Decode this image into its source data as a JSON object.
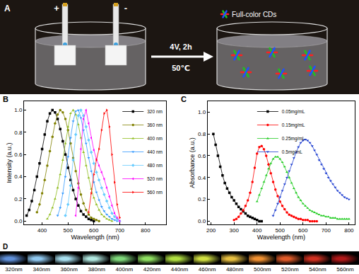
{
  "panels": {
    "A": {
      "label": "A",
      "anode": "+",
      "cathode": "-",
      "condition": "4V, 2h",
      "temperature": "50℃",
      "product": "Full-color CDs"
    },
    "D": {
      "label": "D",
      "images": [
        {
          "label": "320nm",
          "color": "#5f8fd8"
        },
        {
          "label": "340nm",
          "color": "#8fc8f0"
        },
        {
          "label": "360nm",
          "color": "#a8e0f0"
        },
        {
          "label": "380nm",
          "color": "#b0e8e0"
        },
        {
          "label": "400nm",
          "color": "#7ed87a"
        },
        {
          "label": "420nm",
          "color": "#8ee060"
        },
        {
          "label": "440nm",
          "color": "#b0e040"
        },
        {
          "label": "460nm",
          "color": "#d0e040"
        },
        {
          "label": "480nm",
          "color": "#e8c040"
        },
        {
          "label": "500nm",
          "color": "#f09030"
        },
        {
          "label": "520nm",
          "color": "#e05a28"
        },
        {
          "label": "540nm",
          "color": "#d03020"
        },
        {
          "label": "560nm",
          "color": "#b01818"
        }
      ]
    }
  },
  "chart_data": [
    {
      "label": "B",
      "type": "scatter",
      "xlabel": "Wavelength (nm)",
      "ylabel": "Intensity (a.u.)",
      "xlim": [
        330,
        880
      ],
      "xticks": [
        400,
        500,
        600,
        700,
        800
      ],
      "ylim": [
        -0.03,
        1.08
      ],
      "yticks": [
        {
          "value": 0,
          "label": "0.0"
        },
        {
          "value": 0.2,
          "label": "0.2"
        },
        {
          "value": 0.4,
          "label": "0.4"
        },
        {
          "value": 0.6,
          "label": "0.6"
        },
        {
          "value": 0.8,
          "label": "0.8"
        },
        {
          "value": 1,
          "label": "1.0"
        }
      ],
      "grid": false,
      "legend": "upper right",
      "series": [
        {
          "name": "320 nm",
          "color": "#000000",
          "marker": "square",
          "line_style": "solid",
          "x": [
            340,
            350,
            360,
            370,
            380,
            390,
            400,
            410,
            420,
            430,
            440,
            450,
            460,
            470,
            480,
            490,
            500,
            510,
            520,
            530,
            540,
            550,
            560,
            570,
            580,
            590,
            600
          ],
          "values": [
            0.05,
            0.1,
            0.18,
            0.28,
            0.4,
            0.52,
            0.65,
            0.78,
            0.9,
            0.97,
            1.0,
            0.98,
            0.92,
            0.83,
            0.72,
            0.6,
            0.48,
            0.37,
            0.28,
            0.2,
            0.14,
            0.09,
            0.06,
            0.04,
            0.02,
            0.01,
            0.0
          ]
        },
        {
          "name": "360 nm",
          "color": "#808000",
          "marker": "circle",
          "line_style": "solid",
          "x": [
            380,
            390,
            400,
            410,
            420,
            430,
            440,
            450,
            460,
            470,
            480,
            490,
            500,
            510,
            520,
            530,
            540,
            550,
            560,
            570,
            580,
            590,
            600,
            610,
            620
          ],
          "values": [
            0.08,
            0.15,
            0.25,
            0.37,
            0.5,
            0.63,
            0.76,
            0.88,
            0.96,
            1.0,
            0.98,
            0.92,
            0.82,
            0.7,
            0.57,
            0.45,
            0.34,
            0.24,
            0.16,
            0.1,
            0.06,
            0.03,
            0.02,
            0.01,
            0.0
          ]
        },
        {
          "name": "400 nm",
          "color": "#8fbc1e",
          "marker": "triangle-up",
          "line_style": "solid",
          "x": [
            420,
            430,
            440,
            450,
            460,
            470,
            480,
            490,
            500,
            510,
            520,
            530,
            540,
            550,
            560,
            570,
            580,
            590,
            600,
            610,
            620,
            630,
            640,
            650,
            660,
            670
          ],
          "values": [
            0.02,
            0.06,
            0.12,
            0.2,
            0.3,
            0.42,
            0.55,
            0.7,
            0.85,
            0.97,
            1.0,
            0.96,
            0.87,
            0.75,
            0.62,
            0.5,
            0.39,
            0.29,
            0.21,
            0.15,
            0.1,
            0.06,
            0.04,
            0.02,
            0.01,
            0.0
          ]
        },
        {
          "name": "440 nm",
          "color": "#3399ff",
          "marker": "triangle-down",
          "line_style": "solid",
          "x": [
            460,
            470,
            480,
            490,
            500,
            510,
            520,
            530,
            540,
            550,
            560,
            570,
            580,
            590,
            600,
            610,
            620,
            630,
            640,
            650,
            660,
            670,
            680,
            690
          ],
          "values": [
            0.05,
            0.12,
            0.25,
            0.4,
            0.58,
            0.75,
            0.9,
            0.99,
            1.0,
            0.93,
            0.82,
            0.7,
            0.57,
            0.45,
            0.35,
            0.26,
            0.19,
            0.13,
            0.09,
            0.06,
            0.04,
            0.02,
            0.01,
            0.0
          ]
        },
        {
          "name": "480 nm",
          "color": "#66ccff",
          "marker": "diamond",
          "line_style": "solid",
          "x": [
            490,
            500,
            510,
            520,
            530,
            540,
            550,
            560,
            570,
            580,
            590,
            600,
            610,
            620,
            630,
            640,
            650,
            660,
            670,
            680,
            690,
            700
          ],
          "values": [
            0.05,
            0.15,
            0.32,
            0.55,
            0.78,
            0.95,
            1.0,
            0.95,
            0.85,
            0.73,
            0.62,
            0.52,
            0.44,
            0.37,
            0.3,
            0.24,
            0.18,
            0.12,
            0.07,
            0.04,
            0.02,
            0.0
          ]
        },
        {
          "name": "520 nm",
          "color": "#ff00ff",
          "marker": "triangle-left",
          "line_style": "solid",
          "x": [
            530,
            540,
            550,
            560,
            570,
            580,
            590,
            600,
            610,
            620,
            630,
            640,
            650,
            660,
            670,
            680,
            690,
            700
          ],
          "values": [
            0.05,
            0.3,
            0.65,
            0.92,
            1.0,
            0.88,
            0.75,
            0.64,
            0.56,
            0.5,
            0.44,
            0.38,
            0.3,
            0.22,
            0.14,
            0.07,
            0.03,
            0.0
          ]
        },
        {
          "name": "560 nm",
          "color": "#ff0000",
          "marker": "triangle-right",
          "line_style": "solid",
          "x": [
            580,
            590,
            600,
            610,
            620,
            630,
            640,
            650,
            660,
            670,
            680,
            690,
            700
          ],
          "values": [
            0.08,
            0.25,
            0.42,
            0.55,
            0.65,
            0.82,
            0.97,
            1.0,
            0.85,
            0.6,
            0.35,
            0.15,
            0.03
          ]
        }
      ]
    },
    {
      "label": "C",
      "type": "scatter",
      "xlabel": "Wavelength (nm)",
      "ylabel": "Absorbance (a.u.)",
      "xlim": [
        185,
        825
      ],
      "xticks": [
        200,
        300,
        400,
        500,
        600,
        700,
        800
      ],
      "ylim": [
        -0.03,
        1.1
      ],
      "yticks": [
        {
          "value": 0,
          "label": "0.0"
        },
        {
          "value": 0.2,
          "label": "0.2"
        },
        {
          "value": 0.4,
          "label": "0.4"
        },
        {
          "value": 0.6,
          "label": "0.6"
        },
        {
          "value": 0.8,
          "label": "0.8"
        },
        {
          "value": 1,
          "label": "1.0"
        }
      ],
      "grid": false,
      "legend": "upper center",
      "series": [
        {
          "name": "0.05mg/mL",
          "color": "#000000",
          "marker": "square",
          "line_style": "solid",
          "x": [
            210,
            220,
            230,
            240,
            250,
            260,
            270,
            280,
            290,
            300,
            310,
            320,
            330,
            340,
            350,
            360,
            370,
            380,
            390,
            400,
            410,
            420
          ],
          "values": [
            0.8,
            0.7,
            0.6,
            0.5,
            0.42,
            0.35,
            0.3,
            0.26,
            0.22,
            0.19,
            0.16,
            0.13,
            0.11,
            0.09,
            0.07,
            0.05,
            0.04,
            0.03,
            0.02,
            0.01,
            0.0,
            0.0
          ]
        },
        {
          "name": "0.15mg/mL",
          "color": "#ff0000",
          "marker": "circle",
          "line_style": "solid",
          "x": [
            300,
            310,
            320,
            330,
            340,
            350,
            360,
            370,
            380,
            390,
            400,
            410,
            420,
            430,
            440,
            450,
            460,
            470,
            480,
            490,
            500,
            510,
            520,
            530,
            540,
            550,
            560,
            570,
            580,
            590,
            600,
            610,
            620,
            630,
            640,
            650,
            660
          ],
          "values": [
            0.01,
            0.02,
            0.04,
            0.07,
            0.1,
            0.14,
            0.19,
            0.26,
            0.36,
            0.49,
            0.62,
            0.68,
            0.69,
            0.66,
            0.6,
            0.52,
            0.44,
            0.36,
            0.29,
            0.23,
            0.18,
            0.14,
            0.11,
            0.08,
            0.06,
            0.05,
            0.04,
            0.03,
            0.02,
            0.02,
            0.01,
            0.01,
            0.01,
            0.0,
            0.0,
            0.0,
            0.0
          ]
        },
        {
          "name": "0.25mg/mL",
          "color": "#22cc22",
          "marker": "triangle-up",
          "line_style": "solid",
          "x": [
            400,
            410,
            420,
            430,
            440,
            450,
            460,
            470,
            480,
            490,
            500,
            510,
            520,
            530,
            540,
            550,
            560,
            570,
            580,
            590,
            600,
            610,
            620,
            630,
            640,
            650,
            660,
            670,
            680,
            690,
            700,
            710,
            720,
            730,
            740,
            750,
            760,
            770,
            780,
            790,
            800
          ],
          "values": [
            0.18,
            0.24,
            0.3,
            0.36,
            0.42,
            0.48,
            0.53,
            0.57,
            0.59,
            0.59,
            0.57,
            0.54,
            0.5,
            0.45,
            0.4,
            0.35,
            0.3,
            0.26,
            0.22,
            0.19,
            0.16,
            0.14,
            0.12,
            0.1,
            0.09,
            0.08,
            0.07,
            0.06,
            0.05,
            0.05,
            0.04,
            0.04,
            0.03,
            0.03,
            0.03,
            0.02,
            0.02,
            0.02,
            0.02,
            0.02,
            0.02
          ]
        },
        {
          "name": "0.5mg/mL",
          "color": "#1f3fd0",
          "marker": "triangle-down",
          "line_style": "solid",
          "x": [
            470,
            480,
            490,
            500,
            510,
            520,
            530,
            540,
            550,
            560,
            570,
            580,
            590,
            600,
            610,
            620,
            630,
            640,
            650,
            660,
            670,
            680,
            690,
            700,
            710,
            720,
            730,
            740,
            750,
            760,
            770,
            780,
            790,
            800
          ],
          "values": [
            0.05,
            0.1,
            0.16,
            0.22,
            0.28,
            0.34,
            0.4,
            0.46,
            0.52,
            0.58,
            0.63,
            0.68,
            0.72,
            0.74,
            0.75,
            0.74,
            0.72,
            0.69,
            0.65,
            0.61,
            0.56,
            0.52,
            0.48,
            0.44,
            0.4,
            0.37,
            0.34,
            0.31,
            0.28,
            0.26,
            0.24,
            0.22,
            0.21,
            0.2
          ]
        }
      ]
    }
  ]
}
